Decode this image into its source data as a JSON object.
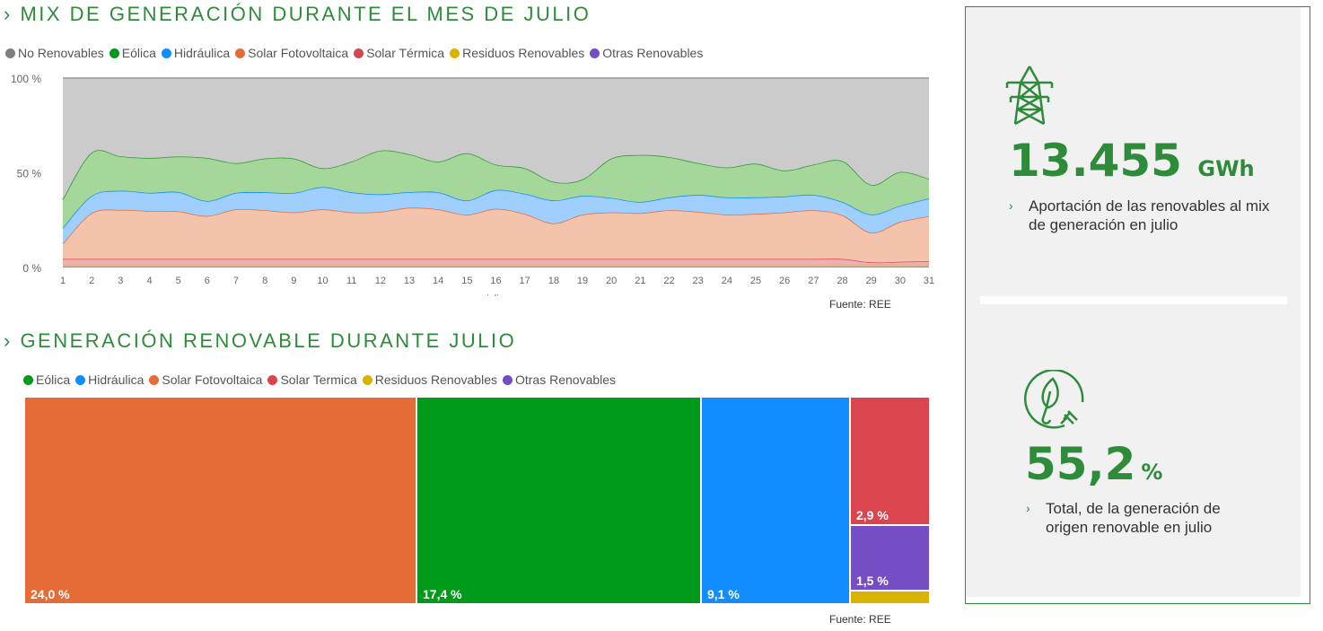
{
  "section1": {
    "title": "› MIX DE GENERACIÓN DURANTE EL MES DE JULIO",
    "source": "Fuente: REE"
  },
  "section2": {
    "title": "› GENERACIÓN RENOVABLE DURANTE JULIO",
    "source": "Fuente: REE"
  },
  "kpis": [
    {
      "icon": "power-tower-icon",
      "value": "13.455",
      "unit": "GWh",
      "chevron": "›",
      "description": "Aportación de las renovables al mix de generación en julio"
    },
    {
      "icon": "leaf-plug-icon",
      "value": "55,2",
      "unit": "%",
      "chevron": "›",
      "description": "Total, de la generación de origen renovable en julio"
    }
  ],
  "chart_data": [
    {
      "type": "area",
      "stacked": "percent",
      "xlabel": "julio",
      "ylabel": "",
      "ylim": [
        0,
        100
      ],
      "yticks": [
        "0 %",
        "50 %",
        "100 %"
      ],
      "x": [
        1,
        2,
        3,
        4,
        5,
        6,
        7,
        8,
        9,
        10,
        11,
        12,
        13,
        14,
        15,
        16,
        17,
        18,
        19,
        20,
        21,
        22,
        23,
        24,
        25,
        26,
        27,
        28,
        29,
        30,
        31
      ],
      "legend_position": "top-left",
      "series": [
        {
          "name": "Otras Renovables",
          "color": "#744EC2",
          "fill": "#C7B6EA",
          "values": [
            0.6,
            0.6,
            0.6,
            0.6,
            0.6,
            0.6,
            0.6,
            0.6,
            0.6,
            0.6,
            0.6,
            0.6,
            0.6,
            0.6,
            0.6,
            0.6,
            0.6,
            0.6,
            0.6,
            0.6,
            0.6,
            0.6,
            0.6,
            0.6,
            0.6,
            0.6,
            0.6,
            0.6,
            0.6,
            0.6,
            0.6
          ]
        },
        {
          "name": "Residuos Renovables",
          "color": "#D9B300",
          "fill": "#EFDE8C",
          "values": [
            0.9,
            0.9,
            0.9,
            0.9,
            0.9,
            0.9,
            0.9,
            0.9,
            0.9,
            0.9,
            0.9,
            0.9,
            0.9,
            0.9,
            0.9,
            0.9,
            0.9,
            0.9,
            0.9,
            0.9,
            0.9,
            0.9,
            0.9,
            0.9,
            0.9,
            0.9,
            0.9,
            0.9,
            0.9,
            0.9,
            0.9
          ]
        },
        {
          "name": "Solar Térmica",
          "color": "#D9444F",
          "fill": "#EFAFB3",
          "values": [
            3,
            3,
            3,
            3,
            3,
            3,
            3,
            3,
            3,
            3,
            3,
            3,
            3,
            3,
            3,
            3,
            3,
            3,
            3,
            3,
            3,
            3,
            3,
            3,
            3,
            3,
            3,
            3,
            1.2,
            1.5,
            1.8
          ]
        },
        {
          "name": "Solar Fotovoltaica",
          "color": "#E66C37",
          "fill": "#F3C3AB",
          "values": [
            8.1,
            24.2,
            25.9,
            25.3,
            25.1,
            22.7,
            26.2,
            25.7,
            24.6,
            26.2,
            24.6,
            24.9,
            27,
            26.2,
            23.4,
            26.5,
            23.8,
            18.8,
            23.4,
            24.6,
            24.2,
            25.7,
            24.9,
            23.4,
            23.8,
            24.6,
            25.7,
            23.1,
            15.7,
            21.1,
            23.8
          ]
        },
        {
          "name": "Hidráulica",
          "color": "#118DFF",
          "fill": "#9FCFFF",
          "values": [
            8.2,
            9.1,
            10.1,
            9.6,
            10.2,
            7.9,
            8.7,
            9.5,
            10.3,
            11.8,
            10.6,
            9.2,
            8.3,
            9,
            7.5,
            9.9,
            10.6,
            12.1,
            9.9,
            7.6,
            5.9,
            6.8,
            8.9,
            9.1,
            8.7,
            8.4,
            8.1,
            7,
            9.6,
            8.5,
            9.4
          ]
        },
        {
          "name": "Eólica",
          "color": "#2E9A2E",
          "fill": "#A5D79A",
          "values": [
            15.2,
            22.8,
            18.2,
            18.4,
            18.8,
            22.7,
            15.7,
            17.8,
            18.1,
            9.9,
            16.2,
            23.1,
            20,
            16.2,
            24.9,
            13.4,
            13.5,
            9.8,
            8.7,
            20.8,
            24.8,
            21.3,
            16.8,
            15.8,
            17.8,
            13.7,
            16,
            21.6,
            15.6,
            17.8,
            10.3
          ]
        },
        {
          "name": "No Renovables",
          "color": "#999999",
          "fill": "#CBCBCB",
          "values": [
            64,
            39.4,
            41.3,
            42.2,
            41.4,
            42.2,
            44.9,
            42.5,
            42.5,
            47.6,
            44.1,
            38.3,
            40.2,
            44.1,
            39.7,
            45.7,
            47.6,
            54.8,
            53.5,
            42.5,
            40.6,
            41.7,
            44.9,
            47.2,
            45.2,
            48.8,
            45.7,
            43.8,
            56.4,
            49.6,
            53.2
          ]
        }
      ],
      "legend": [
        {
          "name": "No Renovables",
          "color": "#7F7F7F"
        },
        {
          "name": "Eólica",
          "color": "#009A1B"
        },
        {
          "name": "Hidráulica",
          "color": "#118DFF"
        },
        {
          "name": "Solar Fotovoltaica",
          "color": "#E66C37"
        },
        {
          "name": "Solar Térmica",
          "color": "#D9444F"
        },
        {
          "name": "Residuos Renovables",
          "color": "#D9B300"
        },
        {
          "name": "Otras Renovables",
          "color": "#744EC2"
        }
      ]
    },
    {
      "type": "treemap",
      "legend": [
        {
          "name": "Eólica",
          "color": "#009A1B"
        },
        {
          "name": "Hidráulica",
          "color": "#118DFF"
        },
        {
          "name": "Solar Fotovoltaica",
          "color": "#E66C37"
        },
        {
          "name": "Solar Termica",
          "color": "#D9444F"
        },
        {
          "name": "Residuos Renovables",
          "color": "#D9B300"
        },
        {
          "name": "Otras Renovables",
          "color": "#744EC2"
        }
      ],
      "items": [
        {
          "name": "Solar Fotovoltaica",
          "value": 24.0,
          "label": "24,0 %",
          "color": "#E66C37"
        },
        {
          "name": "Eólica",
          "value": 17.4,
          "label": "17,4 %",
          "color": "#009A1B"
        },
        {
          "name": "Hidráulica",
          "value": 9.1,
          "label": "9,1 %",
          "color": "#118DFF"
        },
        {
          "name": "Solar Termica",
          "value": 2.9,
          "label": "2,9 %",
          "color": "#D9444F"
        },
        {
          "name": "Otras Renovables",
          "value": 1.5,
          "label": "1,5 %",
          "color": "#744EC2"
        },
        {
          "name": "Residuos Renovables",
          "value": 0.3,
          "label": "",
          "color": "#D9B300"
        }
      ]
    }
  ]
}
